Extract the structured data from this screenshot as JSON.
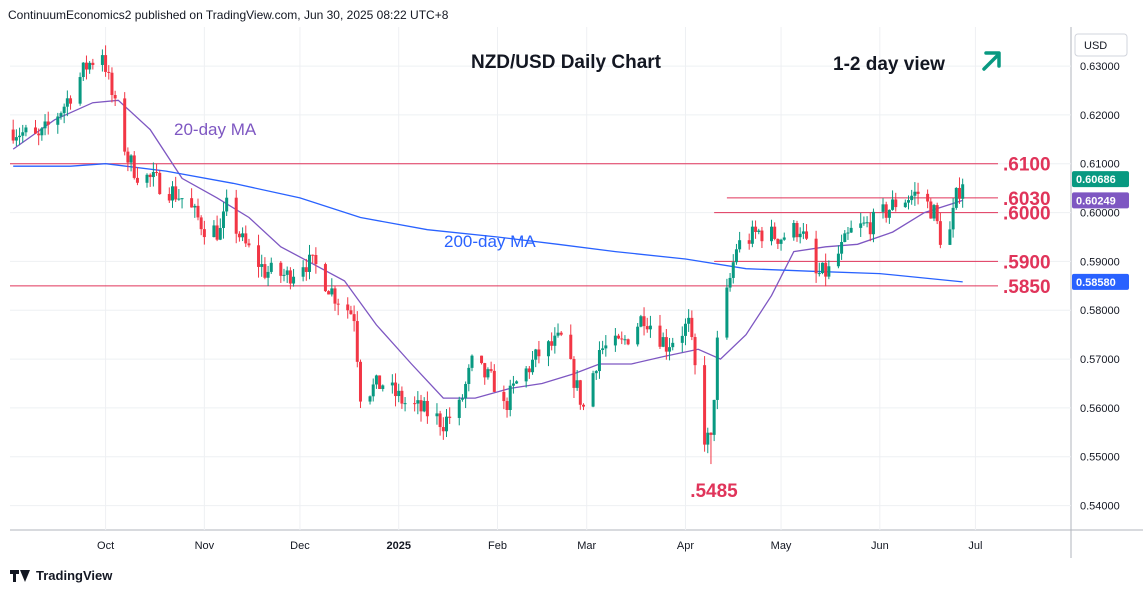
{
  "header": {
    "publisher_line": "ContinuumEconomics2 published on TradingView.com, Jun 30, 2025 08:22 UTC+8"
  },
  "footer": {
    "brand": "TradingView"
  },
  "colors": {
    "up": "#089981",
    "down": "#f23645",
    "ma20": "#7e57c2",
    "ma200": "#2962ff",
    "level": "#e0345a",
    "arrow": "#089981",
    "grid": "#eef0f3"
  },
  "chart_data": {
    "type": "candlestick",
    "title": "NZD/USD Daily Chart",
    "view_label": "1-2 day view",
    "view_arrow_icon": "arrow-up-right-icon",
    "currency": "USD",
    "ylim": [
      0.535,
      0.638
    ],
    "y_ticks": [
      "0.63000",
      "0.62000",
      "0.61000",
      "0.60000",
      "0.59000",
      "0.58000",
      "0.57000",
      "0.56000",
      "0.55000",
      "0.54000"
    ],
    "x_ticks": [
      {
        "label": "Oct",
        "date": "2024-10-01"
      },
      {
        "label": "Nov",
        "date": "2024-11-01"
      },
      {
        "label": "Dec",
        "date": "2024-12-01"
      },
      {
        "label": "2025",
        "date": "2025-01-01"
      },
      {
        "label": "Feb",
        "date": "2025-02-01"
      },
      {
        "label": "Mar",
        "date": "2025-03-01"
      },
      {
        "label": "Apr",
        "date": "2025-04-01"
      },
      {
        "label": "May",
        "date": "2025-05-01"
      },
      {
        "label": "Jun",
        "date": "2025-06-01"
      },
      {
        "label": "Jul",
        "date": "2025-07-01"
      }
    ],
    "x_range": [
      "2024-09-01",
      "2025-07-31"
    ],
    "key_points": [
      [
        "2024-09-02",
        0.617
      ],
      [
        "2024-09-10",
        0.615
      ],
      [
        "2024-09-18",
        0.622
      ],
      [
        "2024-09-25",
        0.63
      ],
      [
        "2024-09-30",
        0.633
      ],
      [
        "2024-10-03",
        0.624
      ],
      [
        "2024-10-08",
        0.611
      ],
      [
        "2024-10-11",
        0.608
      ],
      [
        "2024-10-18",
        0.606
      ],
      [
        "2024-10-25",
        0.603
      ],
      [
        "2024-11-01",
        0.597
      ],
      [
        "2024-11-06",
        0.596
      ],
      [
        "2024-11-08",
        0.601
      ],
      [
        "2024-11-13",
        0.594
      ],
      [
        "2024-11-20",
        0.588
      ],
      [
        "2024-11-27",
        0.587
      ],
      [
        "2024-12-02",
        0.59
      ],
      [
        "2024-12-06",
        0.589
      ],
      [
        "2024-12-12",
        0.583
      ],
      [
        "2024-12-18",
        0.579
      ],
      [
        "2024-12-20",
        0.563
      ],
      [
        "2024-12-27",
        0.565
      ],
      [
        "2025-01-03",
        0.561
      ],
      [
        "2025-01-10",
        0.559
      ],
      [
        "2025-01-15",
        0.557
      ],
      [
        "2025-01-20",
        0.56
      ],
      [
        "2025-01-24",
        0.569
      ],
      [
        "2025-01-31",
        0.565
      ],
      [
        "2025-02-03",
        0.56
      ],
      [
        "2025-02-07",
        0.565
      ],
      [
        "2025-02-14",
        0.571
      ],
      [
        "2025-02-21",
        0.574
      ],
      [
        "2025-02-28",
        0.56
      ],
      [
        "2025-03-05",
        0.572
      ],
      [
        "2025-03-12",
        0.573
      ],
      [
        "2025-03-19",
        0.579
      ],
      [
        "2025-03-26",
        0.573
      ],
      [
        "2025-04-02",
        0.577
      ],
      [
        "2025-04-07",
        0.554
      ],
      [
        "2025-04-09",
        0.553
      ],
      [
        "2025-04-11",
        0.573
      ],
      [
        "2025-04-17",
        0.593
      ],
      [
        "2025-04-24",
        0.596
      ],
      [
        "2025-05-01",
        0.595
      ],
      [
        "2025-05-07",
        0.597
      ],
      [
        "2025-05-12",
        0.587
      ],
      [
        "2025-05-16",
        0.588
      ],
      [
        "2025-05-23",
        0.596
      ],
      [
        "2025-05-30",
        0.598
      ],
      [
        "2025-06-06",
        0.602
      ],
      [
        "2025-06-13",
        0.604
      ],
      [
        "2025-06-18",
        0.6
      ],
      [
        "2025-06-20",
        0.595
      ],
      [
        "2025-06-23",
        0.596
      ],
      [
        "2025-06-25",
        0.603
      ],
      [
        "2025-06-27",
        0.6068
      ]
    ],
    "low_annotation": {
      "label": ".5485",
      "date": "2025-04-09",
      "value": 0.5485
    },
    "moving_averages": [
      {
        "name": "20-day MA",
        "points": [
          [
            "2024-09-02",
            0.613
          ],
          [
            "2024-09-15",
            0.619
          ],
          [
            "2024-09-27",
            0.6225
          ],
          [
            "2024-10-05",
            0.623
          ],
          [
            "2024-10-15",
            0.617
          ],
          [
            "2024-10-25",
            0.607
          ],
          [
            "2024-11-05",
            0.603
          ],
          [
            "2024-11-15",
            0.599
          ],
          [
            "2024-11-25",
            0.593
          ],
          [
            "2024-12-05",
            0.5895
          ],
          [
            "2024-12-15",
            0.586
          ],
          [
            "2024-12-25",
            0.577
          ],
          [
            "2025-01-05",
            0.569
          ],
          [
            "2025-01-15",
            0.562
          ],
          [
            "2025-01-25",
            0.562
          ],
          [
            "2025-02-05",
            0.564
          ],
          [
            "2025-02-15",
            0.565
          ],
          [
            "2025-02-25",
            0.567
          ],
          [
            "2025-03-05",
            0.569
          ],
          [
            "2025-03-15",
            0.569
          ],
          [
            "2025-03-25",
            0.5705
          ],
          [
            "2025-04-05",
            0.572
          ],
          [
            "2025-04-12",
            0.57
          ],
          [
            "2025-04-20",
            0.575
          ],
          [
            "2025-04-28",
            0.583
          ],
          [
            "2025-05-05",
            0.592
          ],
          [
            "2025-05-15",
            0.593
          ],
          [
            "2025-05-25",
            0.5935
          ],
          [
            "2025-06-05",
            0.596
          ],
          [
            "2025-06-15",
            0.6
          ],
          [
            "2025-06-27",
            0.6025
          ]
        ]
      },
      {
        "name": "200-day MA",
        "points": [
          [
            "2024-09-02",
            0.6095
          ],
          [
            "2024-09-20",
            0.6095
          ],
          [
            "2024-10-01",
            0.61
          ],
          [
            "2024-10-20",
            0.6085
          ],
          [
            "2024-11-10",
            0.606
          ],
          [
            "2024-12-01",
            0.603
          ],
          [
            "2024-12-20",
            0.599
          ],
          [
            "2025-01-10",
            0.5965
          ],
          [
            "2025-02-01",
            0.595
          ],
          [
            "2025-02-20",
            0.5935
          ],
          [
            "2025-03-10",
            0.592
          ],
          [
            "2025-04-01",
            0.5905
          ],
          [
            "2025-04-20",
            0.5885
          ],
          [
            "2025-05-10",
            0.588
          ],
          [
            "2025-06-01",
            0.5875
          ],
          [
            "2025-06-27",
            0.5858
          ]
        ]
      }
    ],
    "levels": [
      {
        "label": ".6100",
        "value": 0.61,
        "from": "2024-09-01"
      },
      {
        "label": ".6030",
        "value": 0.603,
        "from": "2025-04-14"
      },
      {
        "label": ".6000",
        "value": 0.6,
        "from": "2025-04-10"
      },
      {
        "label": ".5900",
        "value": 0.59,
        "from": "2025-04-10"
      },
      {
        "label": ".5850",
        "value": 0.585,
        "from": "2024-09-01"
      }
    ],
    "price_tags": [
      {
        "label": "0.60686",
        "value": 0.60686,
        "color": "#089981"
      },
      {
        "label": "0.60249",
        "value": 0.60249,
        "color": "#7e57c2"
      },
      {
        "label": "0.58580",
        "value": 0.5858,
        "color": "#2962ff"
      }
    ]
  }
}
